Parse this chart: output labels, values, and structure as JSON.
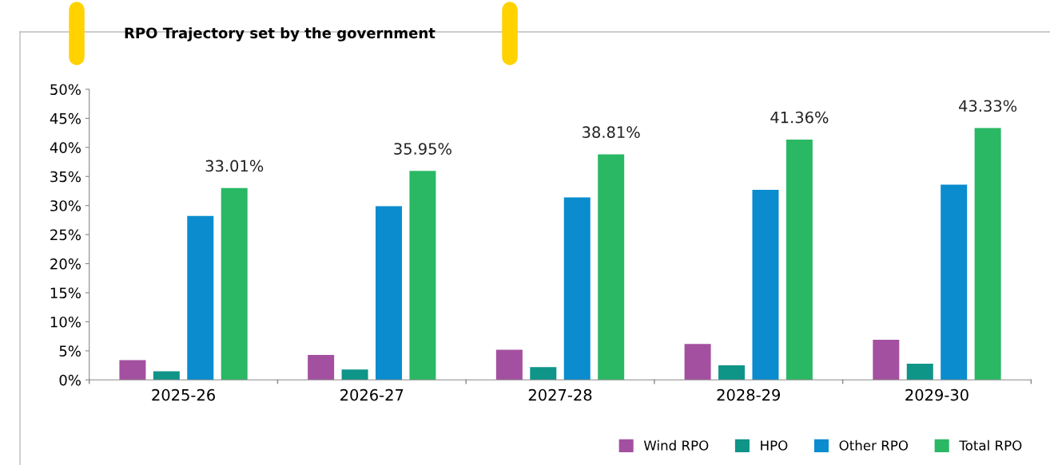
{
  "chart_data": {
    "type": "bar",
    "title": "RPO Trajectory set by the government",
    "categories": [
      "2025-26",
      "2026-27",
      "2027-28",
      "2028-29",
      "2029-30"
    ],
    "series": [
      {
        "name": "Wind RPO",
        "color": "#a450a0",
        "values": [
          3.4,
          4.3,
          5.2,
          6.2,
          6.9
        ]
      },
      {
        "name": "HPO",
        "color": "#0f9488",
        "values": [
          1.5,
          1.8,
          2.2,
          2.5,
          2.8
        ]
      },
      {
        "name": "Other RPO",
        "color": "#0a8ccf",
        "values": [
          28.2,
          29.9,
          31.4,
          32.7,
          33.6
        ]
      },
      {
        "name": "Total RPO",
        "color": "#2ab865",
        "values": [
          33.01,
          35.95,
          38.81,
          41.36,
          43.33
        ],
        "value_labels": [
          "33.01%",
          "35.95%",
          "38.81%",
          "41.36%",
          "43.33%"
        ]
      }
    ],
    "ylim": [
      0,
      50
    ],
    "yticks": [
      {
        "value": 0,
        "label": "0%"
      },
      {
        "value": 5,
        "label": "5%"
      },
      {
        "value": 10,
        "label": "10%"
      },
      {
        "value": 15,
        "label": "15%"
      },
      {
        "value": 20,
        "label": "20%"
      },
      {
        "value": 25,
        "label": "25%"
      },
      {
        "value": 30,
        "label": "30%"
      },
      {
        "value": 35,
        "label": "35%"
      },
      {
        "value": 40,
        "label": "40%"
      },
      {
        "value": 45,
        "label": "45%"
      },
      {
        "value": 50,
        "label": "50%"
      }
    ],
    "grid": false,
    "legend": "bottom right"
  }
}
